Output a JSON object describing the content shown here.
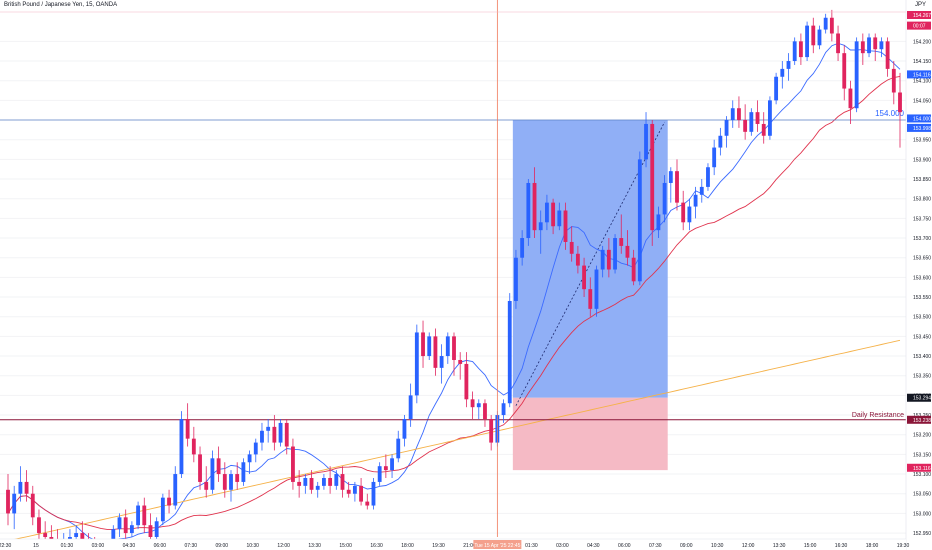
{
  "header": {
    "title": "British Pound / Japanese Yen, 15, OANDA",
    "currency": "JPY"
  },
  "annotations": {
    "level_label": "154.000",
    "resistance_label": "Daily Resistance"
  },
  "price_axis": {
    "ticks": [
      "154.200",
      "154.150",
      "154.100",
      "154.050",
      "154.000",
      "153.950",
      "153.900",
      "153.850",
      "153.800",
      "153.750",
      "153.700",
      "153.650",
      "153.600",
      "153.550",
      "153.500",
      "153.450",
      "153.400",
      "153.350",
      "153.300",
      "153.250",
      "153.200",
      "153.150",
      "153.100",
      "153.050",
      "153.000",
      "152.950"
    ],
    "tags": {
      "top_price": "154.267",
      "top_countdown": "00:07",
      "last": "154.116",
      "level_a": "154.000",
      "level_b": "153.998",
      "mid": "153.294",
      "resistance": "153.238",
      "bottom": "153.116"
    }
  },
  "time_axis": {
    "labels": [
      "22:30",
      "15",
      "01:30",
      "03:00",
      "04:30",
      "06:00",
      "07:30",
      "09:00",
      "10:30",
      "12:00",
      "13:30",
      "15:00",
      "16:30",
      "18:00",
      "19:30",
      "21:00",
      "16",
      "01:30",
      "03:00",
      "04:30",
      "06:00",
      "07:30",
      "09:00",
      "10:30",
      "12:00",
      "13:30",
      "15:00",
      "16:30",
      "18:00",
      "19:30"
    ],
    "highlight": "Tue 15 Apr '25 22:45"
  },
  "colors": {
    "up": "#2962ff",
    "down": "#e0245e",
    "ma_fast": "#3c6bff",
    "ma_mid": "#e0344e",
    "ma_slow": "#f5b24a",
    "profit_zone": "#8aabf5",
    "loss_zone": "#f4b6c2"
  },
  "chart_data": {
    "type": "candlestick",
    "symbol": "British Pound / Japanese Yen",
    "interval": "15",
    "source": "OANDA",
    "y_range": [
      152.94,
      154.27
    ],
    "candles": [
      {
        "o": 153.06,
        "h": 153.1,
        "l": 152.97,
        "c": 153.0
      },
      {
        "o": 153.0,
        "h": 153.07,
        "l": 152.96,
        "c": 153.05
      },
      {
        "o": 153.05,
        "h": 153.12,
        "l": 153.03,
        "c": 153.08
      },
      {
        "o": 153.08,
        "h": 153.11,
        "l": 153.03,
        "c": 153.05
      },
      {
        "o": 153.05,
        "h": 153.07,
        "l": 152.97,
        "c": 152.99
      },
      {
        "o": 152.99,
        "h": 153.01,
        "l": 152.93,
        "c": 152.95
      },
      {
        "o": 152.95,
        "h": 152.98,
        "l": 152.92,
        "c": 152.94
      },
      {
        "o": 152.94,
        "h": 152.97,
        "l": 152.91,
        "c": 152.93
      },
      {
        "o": 152.93,
        "h": 152.96,
        "l": 152.9,
        "c": 152.92
      },
      {
        "o": 152.92,
        "h": 152.95,
        "l": 152.9,
        "c": 152.93
      },
      {
        "o": 152.93,
        "h": 152.96,
        "l": 152.91,
        "c": 152.94
      },
      {
        "o": 152.94,
        "h": 152.97,
        "l": 152.92,
        "c": 152.95
      },
      {
        "o": 152.95,
        "h": 152.98,
        "l": 152.92,
        "c": 152.93
      },
      {
        "o": 152.93,
        "h": 152.95,
        "l": 152.9,
        "c": 152.92
      },
      {
        "o": 152.92,
        "h": 152.94,
        "l": 152.89,
        "c": 152.91
      },
      {
        "o": 152.91,
        "h": 152.93,
        "l": 152.88,
        "c": 152.9
      },
      {
        "o": 152.9,
        "h": 152.93,
        "l": 152.88,
        "c": 152.92
      },
      {
        "o": 152.92,
        "h": 152.97,
        "l": 152.91,
        "c": 152.96
      },
      {
        "o": 152.96,
        "h": 153.0,
        "l": 152.94,
        "c": 152.99
      },
      {
        "o": 152.99,
        "h": 153.01,
        "l": 152.92,
        "c": 152.95
      },
      {
        "o": 152.95,
        "h": 152.98,
        "l": 152.94,
        "c": 152.97
      },
      {
        "o": 152.97,
        "h": 153.03,
        "l": 152.96,
        "c": 153.02
      },
      {
        "o": 153.02,
        "h": 153.04,
        "l": 152.95,
        "c": 152.97
      },
      {
        "o": 152.97,
        "h": 153.0,
        "l": 152.93,
        "c": 152.94
      },
      {
        "o": 152.94,
        "h": 152.99,
        "l": 152.93,
        "c": 152.98
      },
      {
        "o": 152.98,
        "h": 153.05,
        "l": 152.97,
        "c": 153.04
      },
      {
        "o": 153.04,
        "h": 153.06,
        "l": 153.0,
        "c": 153.02
      },
      {
        "o": 153.02,
        "h": 153.12,
        "l": 153.01,
        "c": 153.1
      },
      {
        "o": 153.1,
        "h": 153.26,
        "l": 153.09,
        "c": 153.24
      },
      {
        "o": 153.24,
        "h": 153.28,
        "l": 153.17,
        "c": 153.19
      },
      {
        "o": 153.19,
        "h": 153.22,
        "l": 153.13,
        "c": 153.15
      },
      {
        "o": 153.15,
        "h": 153.17,
        "l": 153.06,
        "c": 153.08
      },
      {
        "o": 153.08,
        "h": 153.12,
        "l": 153.04,
        "c": 153.06
      },
      {
        "o": 153.06,
        "h": 153.16,
        "l": 153.05,
        "c": 153.14
      },
      {
        "o": 153.14,
        "h": 153.17,
        "l": 153.08,
        "c": 153.1
      },
      {
        "o": 153.1,
        "h": 153.13,
        "l": 153.04,
        "c": 153.06
      },
      {
        "o": 153.06,
        "h": 153.11,
        "l": 153.03,
        "c": 153.1
      },
      {
        "o": 153.1,
        "h": 153.13,
        "l": 153.06,
        "c": 153.08
      },
      {
        "o": 153.08,
        "h": 153.14,
        "l": 153.07,
        "c": 153.13
      },
      {
        "o": 153.13,
        "h": 153.16,
        "l": 153.1,
        "c": 153.15
      },
      {
        "o": 153.15,
        "h": 153.19,
        "l": 153.13,
        "c": 153.18
      },
      {
        "o": 153.18,
        "h": 153.23,
        "l": 153.16,
        "c": 153.21
      },
      {
        "o": 153.21,
        "h": 153.24,
        "l": 153.18,
        "c": 153.22
      },
      {
        "o": 153.22,
        "h": 153.25,
        "l": 153.16,
        "c": 153.18
      },
      {
        "o": 153.18,
        "h": 153.24,
        "l": 153.17,
        "c": 153.23
      },
      {
        "o": 153.23,
        "h": 153.24,
        "l": 153.15,
        "c": 153.17
      },
      {
        "o": 153.17,
        "h": 153.19,
        "l": 153.06,
        "c": 153.08
      },
      {
        "o": 153.08,
        "h": 153.11,
        "l": 153.04,
        "c": 153.07
      },
      {
        "o": 153.07,
        "h": 153.1,
        "l": 153.05,
        "c": 153.09
      },
      {
        "o": 153.09,
        "h": 153.11,
        "l": 153.05,
        "c": 153.06
      },
      {
        "o": 153.06,
        "h": 153.08,
        "l": 153.04,
        "c": 153.07
      },
      {
        "o": 153.07,
        "h": 153.1,
        "l": 153.06,
        "c": 153.09
      },
      {
        "o": 153.09,
        "h": 153.12,
        "l": 153.05,
        "c": 153.07
      },
      {
        "o": 153.07,
        "h": 153.11,
        "l": 153.06,
        "c": 153.1
      },
      {
        "o": 153.1,
        "h": 153.12,
        "l": 153.04,
        "c": 153.06
      },
      {
        "o": 153.06,
        "h": 153.08,
        "l": 153.04,
        "c": 153.05
      },
      {
        "o": 153.05,
        "h": 153.08,
        "l": 153.03,
        "c": 153.07
      },
      {
        "o": 153.07,
        "h": 153.09,
        "l": 153.02,
        "c": 153.03
      },
      {
        "o": 153.03,
        "h": 153.05,
        "l": 153.01,
        "c": 153.02
      },
      {
        "o": 153.02,
        "h": 153.09,
        "l": 153.01,
        "c": 153.08
      },
      {
        "o": 153.08,
        "h": 153.13,
        "l": 153.07,
        "c": 153.12
      },
      {
        "o": 153.12,
        "h": 153.15,
        "l": 153.09,
        "c": 153.11
      },
      {
        "o": 153.11,
        "h": 153.15,
        "l": 153.09,
        "c": 153.14
      },
      {
        "o": 153.14,
        "h": 153.21,
        "l": 153.13,
        "c": 153.19
      },
      {
        "o": 153.19,
        "h": 153.25,
        "l": 153.17,
        "c": 153.24
      },
      {
        "o": 153.24,
        "h": 153.33,
        "l": 153.22,
        "c": 153.3
      },
      {
        "o": 153.3,
        "h": 153.48,
        "l": 153.28,
        "c": 153.46
      },
      {
        "o": 153.46,
        "h": 153.49,
        "l": 153.37,
        "c": 153.4
      },
      {
        "o": 153.4,
        "h": 153.46,
        "l": 153.39,
        "c": 153.45
      },
      {
        "o": 153.45,
        "h": 153.47,
        "l": 153.35,
        "c": 153.37
      },
      {
        "o": 153.37,
        "h": 153.43,
        "l": 153.33,
        "c": 153.4
      },
      {
        "o": 153.4,
        "h": 153.46,
        "l": 153.38,
        "c": 153.45
      },
      {
        "o": 153.45,
        "h": 153.46,
        "l": 153.35,
        "c": 153.39
      },
      {
        "o": 153.39,
        "h": 153.41,
        "l": 153.34,
        "c": 153.38
      },
      {
        "o": 153.38,
        "h": 153.41,
        "l": 153.27,
        "c": 153.29
      },
      {
        "o": 153.29,
        "h": 153.31,
        "l": 153.24,
        "c": 153.27
      },
      {
        "o": 153.27,
        "h": 153.29,
        "l": 153.24,
        "c": 153.28
      },
      {
        "o": 153.28,
        "h": 153.29,
        "l": 153.22,
        "c": 153.24
      },
      {
        "o": 153.24,
        "h": 153.25,
        "l": 153.16,
        "c": 153.18
      },
      {
        "o": 153.18,
        "h": 153.26,
        "l": 153.17,
        "c": 153.25
      },
      {
        "o": 153.25,
        "h": 153.29,
        "l": 153.23,
        "c": 153.28
      },
      {
        "o": 153.28,
        "h": 153.56,
        "l": 153.27,
        "c": 153.54
      },
      {
        "o": 153.54,
        "h": 153.67,
        "l": 153.52,
        "c": 153.65
      },
      {
        "o": 153.65,
        "h": 153.72,
        "l": 153.63,
        "c": 153.7
      },
      {
        "o": 153.7,
        "h": 153.85,
        "l": 153.68,
        "c": 153.84
      },
      {
        "o": 153.84,
        "h": 153.88,
        "l": 153.7,
        "c": 153.72
      },
      {
        "o": 153.72,
        "h": 153.77,
        "l": 153.66,
        "c": 153.74
      },
      {
        "o": 153.74,
        "h": 153.81,
        "l": 153.72,
        "c": 153.79
      },
      {
        "o": 153.79,
        "h": 153.8,
        "l": 153.71,
        "c": 153.73
      },
      {
        "o": 153.73,
        "h": 153.79,
        "l": 153.72,
        "c": 153.77
      },
      {
        "o": 153.77,
        "h": 153.79,
        "l": 153.67,
        "c": 153.69
      },
      {
        "o": 153.69,
        "h": 153.73,
        "l": 153.64,
        "c": 153.66
      },
      {
        "o": 153.66,
        "h": 153.68,
        "l": 153.61,
        "c": 153.63
      },
      {
        "o": 153.63,
        "h": 153.65,
        "l": 153.55,
        "c": 153.57
      },
      {
        "o": 153.57,
        "h": 153.6,
        "l": 153.5,
        "c": 153.52
      },
      {
        "o": 153.52,
        "h": 153.63,
        "l": 153.5,
        "c": 153.62
      },
      {
        "o": 153.62,
        "h": 153.68,
        "l": 153.6,
        "c": 153.67
      },
      {
        "o": 153.67,
        "h": 153.7,
        "l": 153.6,
        "c": 153.62
      },
      {
        "o": 153.62,
        "h": 153.71,
        "l": 153.61,
        "c": 153.7
      },
      {
        "o": 153.7,
        "h": 153.76,
        "l": 153.66,
        "c": 153.68
      },
      {
        "o": 153.68,
        "h": 153.72,
        "l": 153.63,
        "c": 153.65
      },
      {
        "o": 153.65,
        "h": 153.67,
        "l": 153.58,
        "c": 153.59
      },
      {
        "o": 153.59,
        "h": 153.92,
        "l": 153.58,
        "c": 153.9
      },
      {
        "o": 153.9,
        "h": 154.02,
        "l": 153.88,
        "c": 153.99
      },
      {
        "o": 153.99,
        "h": 154.0,
        "l": 153.68,
        "c": 153.72
      },
      {
        "o": 153.72,
        "h": 153.78,
        "l": 153.7,
        "c": 153.76
      },
      {
        "o": 153.76,
        "h": 153.86,
        "l": 153.74,
        "c": 153.84
      },
      {
        "o": 153.84,
        "h": 153.88,
        "l": 153.79,
        "c": 153.87
      },
      {
        "o": 153.87,
        "h": 153.9,
        "l": 153.77,
        "c": 153.79
      },
      {
        "o": 153.79,
        "h": 153.82,
        "l": 153.72,
        "c": 153.74
      },
      {
        "o": 153.74,
        "h": 153.8,
        "l": 153.72,
        "c": 153.78
      },
      {
        "o": 153.78,
        "h": 153.83,
        "l": 153.75,
        "c": 153.81
      },
      {
        "o": 153.81,
        "h": 153.85,
        "l": 153.79,
        "c": 153.83
      },
      {
        "o": 153.83,
        "h": 153.89,
        "l": 153.82,
        "c": 153.88
      },
      {
        "o": 153.88,
        "h": 153.95,
        "l": 153.86,
        "c": 153.93
      },
      {
        "o": 153.93,
        "h": 153.98,
        "l": 153.91,
        "c": 153.96
      },
      {
        "o": 153.96,
        "h": 154.01,
        "l": 153.93,
        "c": 154.0
      },
      {
        "o": 154.0,
        "h": 154.05,
        "l": 153.98,
        "c": 154.03
      },
      {
        "o": 154.03,
        "h": 154.06,
        "l": 153.98,
        "c": 154.0
      },
      {
        "o": 154.0,
        "h": 154.04,
        "l": 153.95,
        "c": 153.97
      },
      {
        "o": 153.97,
        "h": 154.03,
        "l": 153.96,
        "c": 154.02
      },
      {
        "o": 154.02,
        "h": 154.05,
        "l": 153.97,
        "c": 153.99
      },
      {
        "o": 153.99,
        "h": 154.02,
        "l": 153.94,
        "c": 153.96
      },
      {
        "o": 153.96,
        "h": 154.06,
        "l": 153.95,
        "c": 154.05
      },
      {
        "o": 154.05,
        "h": 154.12,
        "l": 154.04,
        "c": 154.11
      },
      {
        "o": 154.11,
        "h": 154.15,
        "l": 154.08,
        "c": 154.13
      },
      {
        "o": 154.13,
        "h": 154.17,
        "l": 154.1,
        "c": 154.15
      },
      {
        "o": 154.15,
        "h": 154.21,
        "l": 154.14,
        "c": 154.2
      },
      {
        "o": 154.2,
        "h": 154.22,
        "l": 154.14,
        "c": 154.16
      },
      {
        "o": 154.16,
        "h": 154.25,
        "l": 154.15,
        "c": 154.24
      },
      {
        "o": 154.24,
        "h": 154.26,
        "l": 154.17,
        "c": 154.19
      },
      {
        "o": 154.19,
        "h": 154.24,
        "l": 154.18,
        "c": 154.23
      },
      {
        "o": 154.23,
        "h": 154.27,
        "l": 154.22,
        "c": 154.26
      },
      {
        "o": 154.26,
        "h": 154.28,
        "l": 154.2,
        "c": 154.22
      },
      {
        "o": 154.22,
        "h": 154.24,
        "l": 154.15,
        "c": 154.17
      },
      {
        "o": 154.17,
        "h": 154.19,
        "l": 154.05,
        "c": 154.08
      },
      {
        "o": 154.08,
        "h": 154.1,
        "l": 153.99,
        "c": 154.03
      },
      {
        "o": 154.03,
        "h": 154.21,
        "l": 154.02,
        "c": 154.2
      },
      {
        "o": 154.2,
        "h": 154.22,
        "l": 154.14,
        "c": 154.17
      },
      {
        "o": 154.17,
        "h": 154.22,
        "l": 154.16,
        "c": 154.21
      },
      {
        "o": 154.21,
        "h": 154.22,
        "l": 154.15,
        "c": 154.18
      },
      {
        "o": 154.18,
        "h": 154.21,
        "l": 154.16,
        "c": 154.2
      },
      {
        "o": 154.2,
        "h": 154.21,
        "l": 154.11,
        "c": 154.13
      },
      {
        "o": 154.13,
        "h": 154.15,
        "l": 154.04,
        "c": 154.07
      },
      {
        "o": 154.07,
        "h": 154.12,
        "l": 153.93,
        "c": 154.02
      }
    ],
    "moving_averages": [
      {
        "name": "fast",
        "color": "#3c6bff",
        "period": 10
      },
      {
        "name": "mid",
        "color": "#e0344e",
        "period": 30
      },
      {
        "name": "slow",
        "color": "#f5b24a",
        "from": 152.93,
        "to": 153.44
      }
    ],
    "levels": [
      {
        "label": "154.000",
        "price": 154.0
      },
      {
        "label": "Daily Resistance",
        "price": 153.238
      }
    ],
    "position": {
      "entry": 153.294,
      "target": 154.0,
      "stop": 153.11,
      "start_index": 82,
      "end_index": 106
    },
    "crosshair_index": 79
  }
}
